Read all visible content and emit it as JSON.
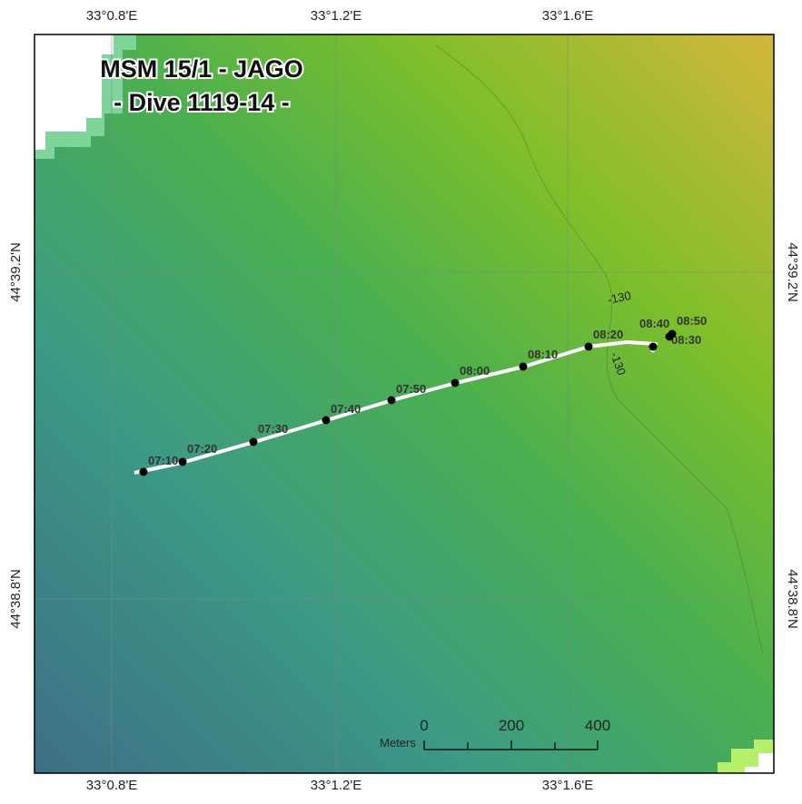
{
  "title": [
    "MSM 15/1 - JAGO",
    "- Dive 1119-14 -"
  ],
  "graticule": {
    "longitudes": [
      "33°0.8'E",
      "33°1.2'E",
      "33°1.6'E"
    ],
    "latitudes": [
      "44°39.2'N",
      "44°38.8'N"
    ]
  },
  "track": {
    "times": [
      "07:10",
      "07:20",
      "07:30",
      "07:40",
      "07:50",
      "08:00",
      "08:10",
      "08:20",
      "08:30",
      "08:40",
      "08:50"
    ]
  },
  "contours": [
    "-130",
    "-130"
  ],
  "scale_bar": {
    "unit": "Meters",
    "labels": [
      0,
      200,
      400
    ]
  }
}
